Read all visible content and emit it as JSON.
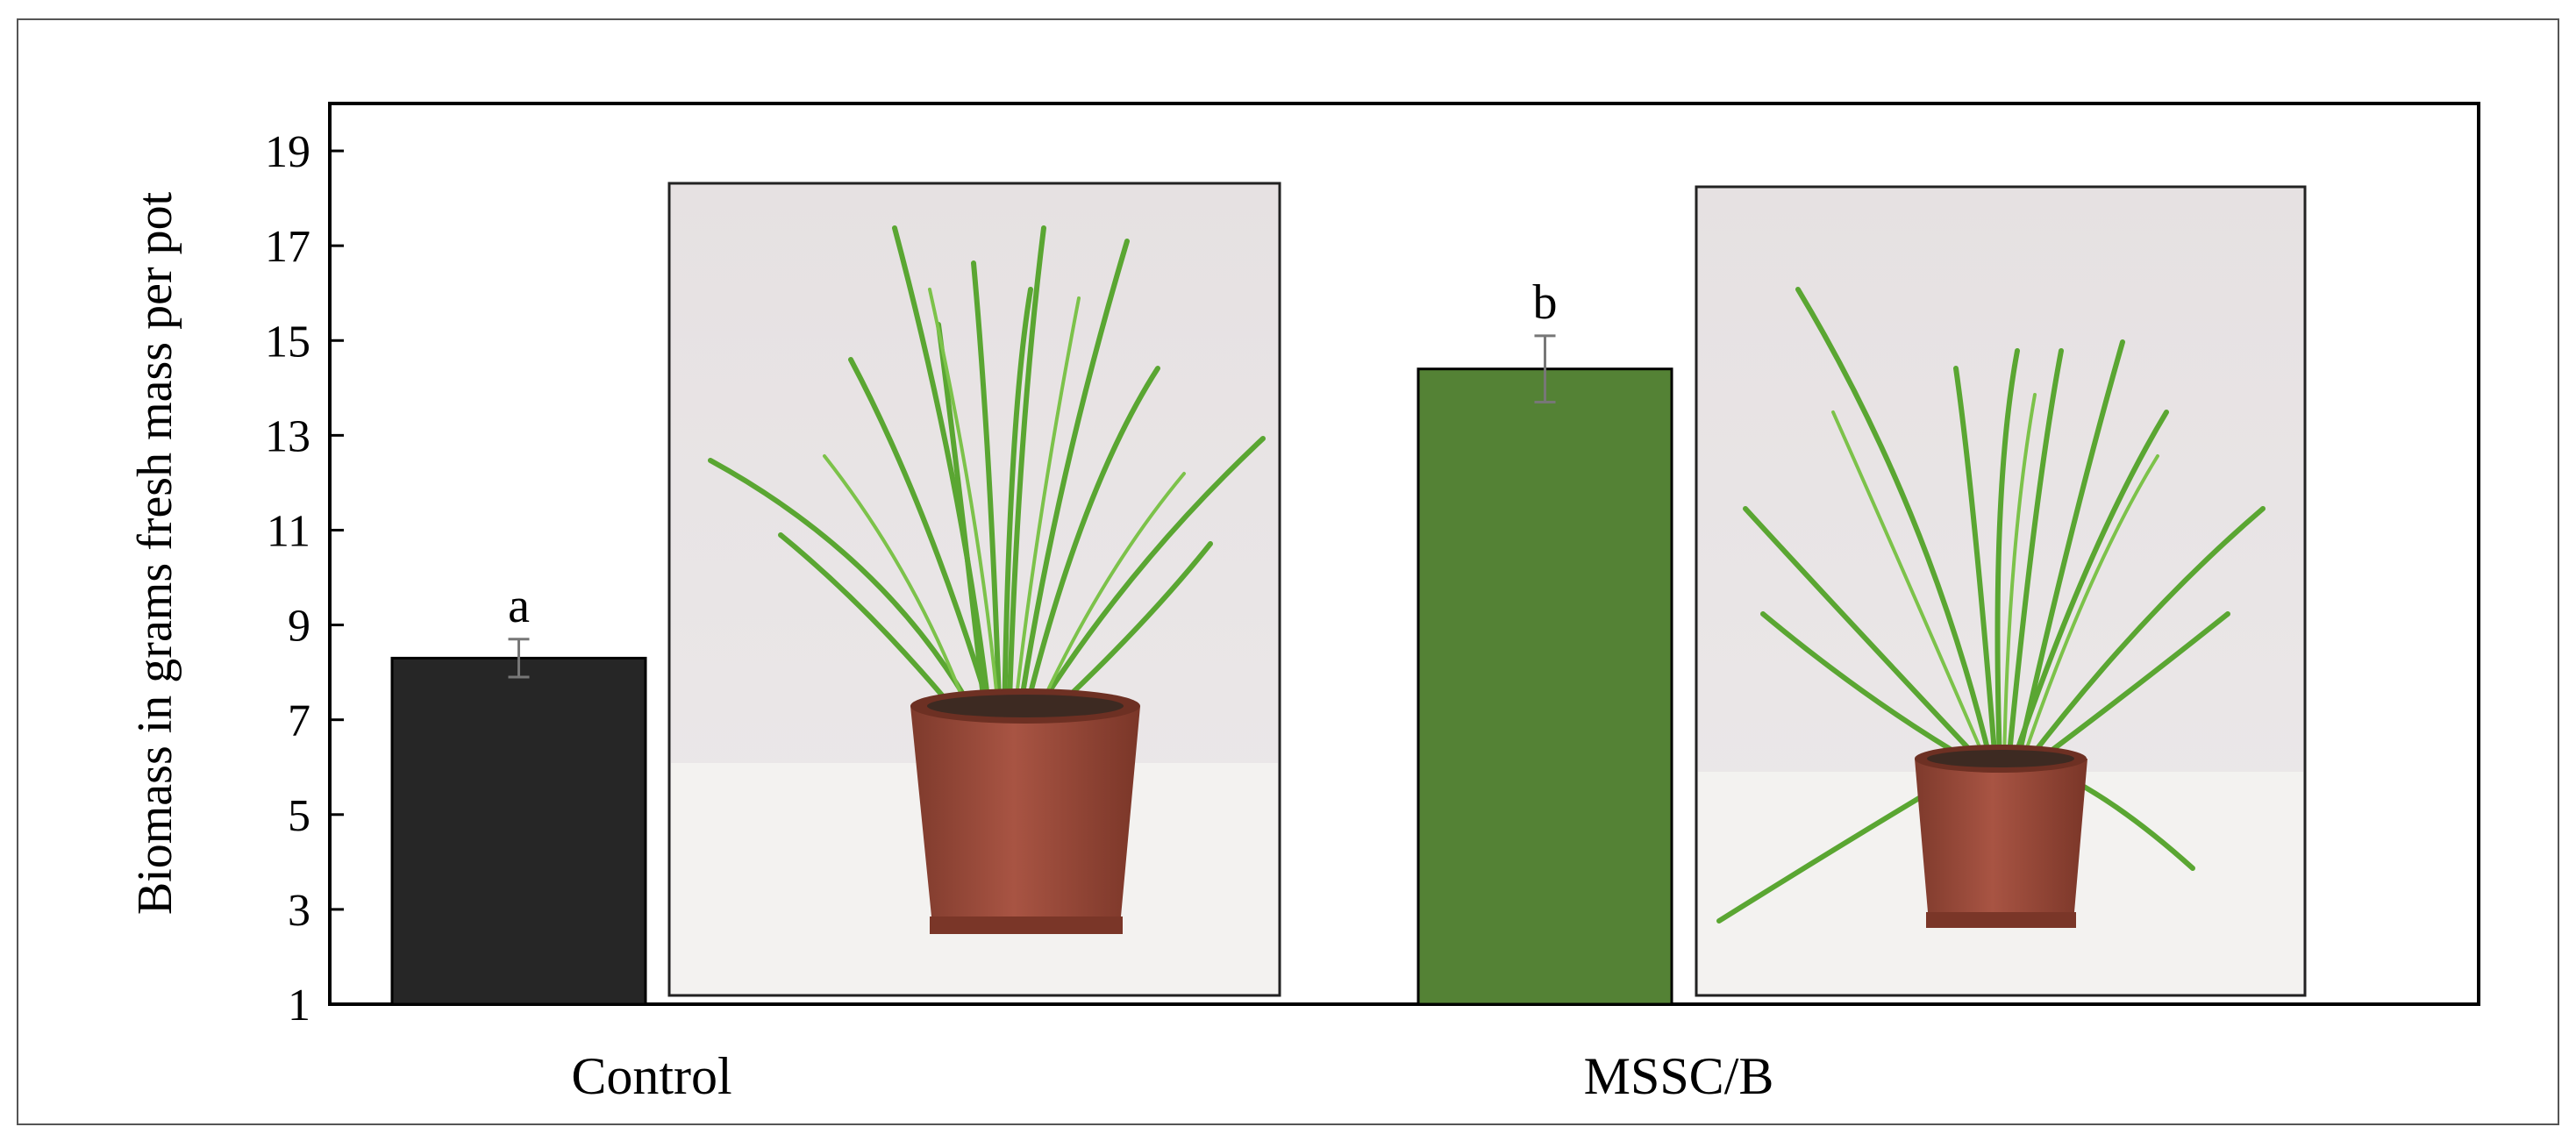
{
  "chart_data": {
    "type": "bar",
    "ylabel": "Biomass in grams fresh mass per pot",
    "xlabel": "",
    "ylim": [
      1,
      20
    ],
    "yticks": [
      1,
      3,
      5,
      7,
      9,
      11,
      13,
      15,
      17,
      19
    ],
    "categories": [
      "Control",
      "MSSC/B"
    ],
    "values": [
      8.3,
      14.4
    ],
    "errors": [
      0.4,
      0.7
    ],
    "significance_letters": [
      "a",
      "b"
    ],
    "bar_colors": [
      "#262626",
      "#548235"
    ],
    "grid": false,
    "legend": "none"
  },
  "photos": [
    {
      "subject": "control-grass-pot-photo"
    },
    {
      "subject": "mssc-b-grass-pot-photo"
    }
  ],
  "colors": {
    "frame": "#3a3a3a",
    "pot": "#9a4a3a",
    "grass": "#5aa632",
    "backdrop": "#e9e5e6",
    "table": "#f4f3f1"
  }
}
